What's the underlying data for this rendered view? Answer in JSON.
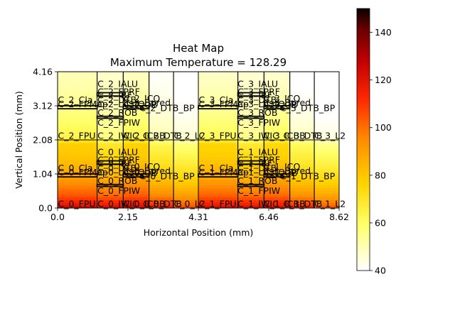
{
  "chart_data": {
    "type": "heatmap",
    "title": "Heat Map",
    "subtitle": "Maximum Temperature = 128.29",
    "xlabel": "Horizontal Position (mm)",
    "ylabel": "Vertical Position (mm)",
    "xlim": [
      0.0,
      8.62
    ],
    "ylim": [
      0.0,
      4.16
    ],
    "xticks": [
      "0.0",
      "2.15",
      "4.31",
      "6.46",
      "8.62"
    ],
    "yticks": [
      "0.0",
      "1.04",
      "2.08",
      "3.12",
      "4.16"
    ],
    "colorbar": {
      "min": 40,
      "max": 150,
      "ticks": [
        "40",
        "60",
        "80",
        "100",
        "120",
        "140"
      ],
      "colormap": "hot_r"
    },
    "temperature_profile": {
      "y": [
        0.0,
        0.15,
        0.4,
        0.7,
        1.0,
        1.3,
        1.6,
        1.9,
        2.0,
        2.08,
        2.2,
        2.5,
        2.8,
        3.1,
        3.4,
        3.7,
        4.0,
        4.16
      ],
      "left_block": [
        122,
        112,
        100,
        92,
        85,
        80,
        76,
        74,
        73,
        62,
        60,
        57,
        54,
        51,
        49,
        47,
        46,
        45
      ],
      "mid_block": [
        118,
        108,
        95,
        86,
        78,
        72,
        68,
        64,
        62,
        52,
        50,
        48,
        46,
        44,
        43,
        42,
        41,
        41
      ],
      "right_block": [
        110,
        102,
        92,
        83,
        76,
        70,
        65,
        60,
        58,
        50,
        48,
        46,
        44,
        43,
        42,
        41,
        40,
        40
      ]
    },
    "labels": [
      {
        "text": "C_2_IALU",
        "x": 1.21,
        "y": 3.67
      },
      {
        "text": "C_2_FPRF",
        "x": 1.21,
        "y": 3.43
      },
      {
        "text": "C_2_IRF",
        "x": 1.21,
        "y": 3.33
      },
      {
        "text": "C_2_ICQ",
        "x": 2.01,
        "y": 3.23
      },
      {
        "text": "C_2_Cla",
        "x": 0.0,
        "y": 3.18
      },
      {
        "text": "C_2_DTB",
        "x": 1.21,
        "y": 3.18
      },
      {
        "text": "C_2_Bpred",
        "x": 2.01,
        "y": 3.1
      },
      {
        "text": "C_2_FPMap",
        "x": 0.0,
        "y": 3.06
      },
      {
        "text": "C_2_LdStQ",
        "x": 1.21,
        "y": 3.06
      },
      {
        "text": "C_2_OB",
        "x": 2.01,
        "y": 3.03
      },
      {
        "text": "C_2_DTB_BP",
        "x": 2.5,
        "y": 2.94
      },
      {
        "text": "C_2_ROB",
        "x": 1.21,
        "y": 2.8
      },
      {
        "text": "C_2_FPIW",
        "x": 1.21,
        "y": 2.49
      },
      {
        "text": "C_2_FPU",
        "x": 0.0,
        "y": 2.09
      },
      {
        "text": "C_2_IWIC",
        "x": 1.21,
        "y": 2.09
      },
      {
        "text": "C_2_ICBB",
        "x": 2.01,
        "y": 2.09
      },
      {
        "text": "C_2_DTB",
        "x": 2.6,
        "y": 2.09
      },
      {
        "text": "C_2_L2",
        "x": 3.55,
        "y": 2.09
      },
      {
        "text": "C_3_IALU",
        "x": 5.5,
        "y": 3.67
      },
      {
        "text": "C_3_FPRF",
        "x": 5.5,
        "y": 3.43
      },
      {
        "text": "C_3_IRF",
        "x": 5.5,
        "y": 3.33
      },
      {
        "text": "C_3_ICQ",
        "x": 6.3,
        "y": 3.23
      },
      {
        "text": "C_3_Cla",
        "x": 4.31,
        "y": 3.18
      },
      {
        "text": "C_3_DTB",
        "x": 5.5,
        "y": 3.18
      },
      {
        "text": "C_3_Bpred",
        "x": 6.3,
        "y": 3.1
      },
      {
        "text": "C_3_FPMap",
        "x": 4.31,
        "y": 3.06
      },
      {
        "text": "C_3_LdStQ",
        "x": 5.5,
        "y": 3.06
      },
      {
        "text": "C_3_OB",
        "x": 6.3,
        "y": 3.03
      },
      {
        "text": "C_3_DTB_BP",
        "x": 6.8,
        "y": 2.94
      },
      {
        "text": "C_3_ROB",
        "x": 5.5,
        "y": 2.8
      },
      {
        "text": "C_3_FPIW",
        "x": 5.5,
        "y": 2.49
      },
      {
        "text": "C_3_FPU",
        "x": 4.31,
        "y": 2.09
      },
      {
        "text": "C_3_IWIC",
        "x": 5.5,
        "y": 2.09
      },
      {
        "text": "C_3_ICBB",
        "x": 6.3,
        "y": 2.09
      },
      {
        "text": "C_3_DTB",
        "x": 6.9,
        "y": 2.09
      },
      {
        "text": "C_3_L2",
        "x": 7.85,
        "y": 2.09
      },
      {
        "text": "C_0_IALU",
        "x": 1.21,
        "y": 1.59
      },
      {
        "text": "C_0_FPRF",
        "x": 1.21,
        "y": 1.35
      },
      {
        "text": "C_0_IRF",
        "x": 1.21,
        "y": 1.25
      },
      {
        "text": "C_0_ICQ",
        "x": 2.01,
        "y": 1.15
      },
      {
        "text": "C_0_Cla",
        "x": 0.0,
        "y": 1.1
      },
      {
        "text": "C_0_DTB",
        "x": 1.21,
        "y": 1.1
      },
      {
        "text": "C_0_Bpred",
        "x": 2.01,
        "y": 1.02
      },
      {
        "text": "C_0_FPMap",
        "x": 0.0,
        "y": 0.98
      },
      {
        "text": "C_0_LdStQ",
        "x": 1.21,
        "y": 0.98
      },
      {
        "text": "C_0_OB",
        "x": 2.01,
        "y": 0.95
      },
      {
        "text": "C_0_DTB_BP",
        "x": 2.5,
        "y": 0.86
      },
      {
        "text": "C_0_ROB",
        "x": 1.21,
        "y": 0.72
      },
      {
        "text": "C_0_FPIW",
        "x": 1.21,
        "y": 0.41
      },
      {
        "text": "C_0_FPU",
        "x": 0.0,
        "y": 0.01
      },
      {
        "text": "C_0_IWIC",
        "x": 1.21,
        "y": 0.01
      },
      {
        "text": "C_0_ICBB",
        "x": 2.01,
        "y": 0.01
      },
      {
        "text": "C_0_DTB",
        "x": 2.6,
        "y": 0.01
      },
      {
        "text": "C_0_L2",
        "x": 3.55,
        "y": 0.01
      },
      {
        "text": "C_1_IALU",
        "x": 5.5,
        "y": 1.59
      },
      {
        "text": "C_1_FPRF",
        "x": 5.5,
        "y": 1.35
      },
      {
        "text": "C_1_IRF",
        "x": 5.5,
        "y": 1.25
      },
      {
        "text": "C_1_ICQ",
        "x": 6.3,
        "y": 1.15
      },
      {
        "text": "C_1_Cla",
        "x": 4.31,
        "y": 1.1
      },
      {
        "text": "C_1_DTB",
        "x": 5.5,
        "y": 1.1
      },
      {
        "text": "C_1_Bpred",
        "x": 6.3,
        "y": 1.02
      },
      {
        "text": "C_1_FPMap",
        "x": 4.31,
        "y": 0.98
      },
      {
        "text": "C_1_LdStQ",
        "x": 5.5,
        "y": 0.98
      },
      {
        "text": "C_1_OB",
        "x": 6.3,
        "y": 0.95
      },
      {
        "text": "C_1_DTB_BP",
        "x": 6.8,
        "y": 0.86
      },
      {
        "text": "C_1_ROB",
        "x": 5.5,
        "y": 0.72
      },
      {
        "text": "C_1_FPIW",
        "x": 5.5,
        "y": 0.41
      },
      {
        "text": "C_1_FPU",
        "x": 4.31,
        "y": 0.01
      },
      {
        "text": "C_1_IWIC",
        "x": 5.5,
        "y": 0.01
      },
      {
        "text": "C_1_ICBB",
        "x": 6.3,
        "y": 0.01
      },
      {
        "text": "C_1_DTB",
        "x": 6.9,
        "y": 0.01
      },
      {
        "text": "C_1_L2",
        "x": 7.85,
        "y": 0.01
      }
    ]
  }
}
